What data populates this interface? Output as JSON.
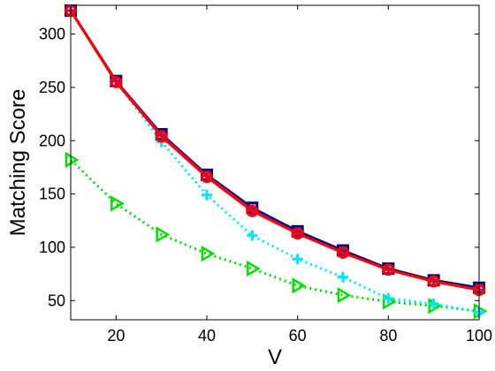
{
  "chart_data": {
    "type": "line",
    "title": "",
    "xlabel": "V",
    "ylabel": "Matching Score",
    "xlim": [
      10,
      100
    ],
    "ylim": [
      32,
      327
    ],
    "xticks": [
      20,
      40,
      60,
      80,
      100
    ],
    "yticks": [
      50,
      100,
      150,
      200,
      250,
      300
    ],
    "grid": false,
    "legend": "none",
    "x": [
      10,
      20,
      30,
      40,
      50,
      60,
      70,
      80,
      90,
      100
    ],
    "series": [
      {
        "values": [
          182,
          141,
          112,
          94,
          80,
          64,
          55,
          49,
          45,
          40
        ],
        "color": "#00e000",
        "line": "dotted",
        "marker": "triangle-right"
      },
      {
        "values": [
          322,
          255,
          199,
          149,
          111,
          89,
          72,
          52,
          47,
          39
        ],
        "color": "#00e5ff",
        "line": "dotted",
        "marker": "plus"
      },
      {
        "values": [
          322,
          256,
          206,
          168,
          137,
          115,
          97,
          80,
          69,
          62
        ],
        "color": "#000080",
        "line": "solid",
        "marker": "square"
      },
      {
        "values": [
          322,
          256,
          205,
          167,
          135,
          113,
          95,
          79,
          68,
          60
        ],
        "color": "#8b1a8b",
        "line": "solid",
        "marker": "plus"
      },
      {
        "values": [
          322,
          255,
          204,
          166,
          134,
          113,
          95,
          79,
          68,
          60
        ],
        "color": "#ff0000",
        "line": "solid",
        "marker": "circle"
      }
    ]
  }
}
